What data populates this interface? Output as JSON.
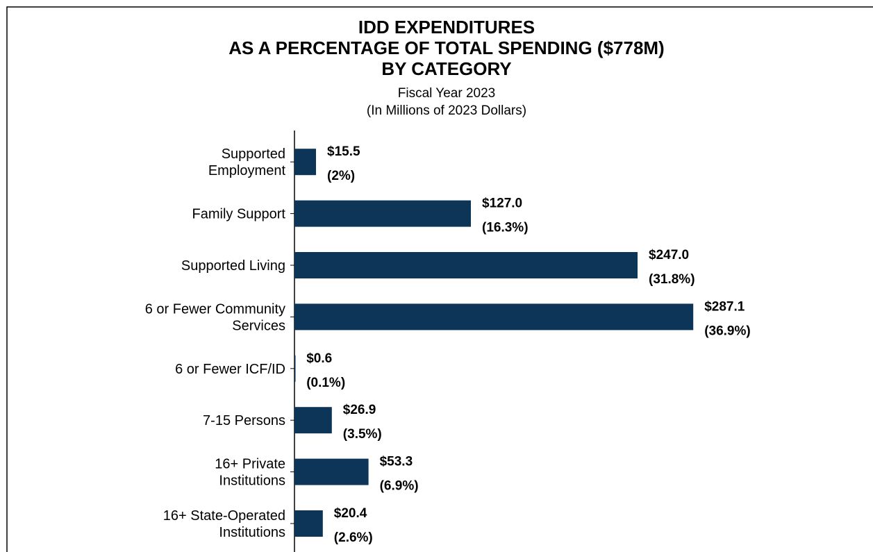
{
  "chart_data": {
    "type": "hbar",
    "title": "IDD EXPENDITURES\nAS A PERCENTAGE OF TOTAL SPENDING ($778M)\nBY CATEGORY",
    "subtitle": "Fiscal Year 2023\n(In Millions of 2023 Dollars)",
    "categories": [
      "Supported\nEmployment",
      "Family Support",
      "Supported Living",
      "6 or Fewer Community\nServices",
      "6 or Fewer ICF/ID",
      "7-15 Persons",
      "16+ Private\nInstitutions",
      "16+ State-Operated\nInstitutions"
    ],
    "values": [
      15.5,
      127.0,
      247.0,
      287.1,
      0.6,
      26.9,
      53.3,
      20.4
    ],
    "value_labels": [
      "$15.5",
      "$127.0",
      "$247.0",
      "$287.1",
      "$0.6",
      "$26.9",
      "$53.3",
      "$20.4"
    ],
    "percent_labels": [
      "(2%)",
      "(16.3%)",
      "(31.8%)",
      "(36.9%)",
      "(0.1%)",
      "(3.5%)",
      "(6.9%)",
      "(2.6%)"
    ],
    "color": "#0d3558",
    "xlim": [
      0,
      400
    ]
  }
}
